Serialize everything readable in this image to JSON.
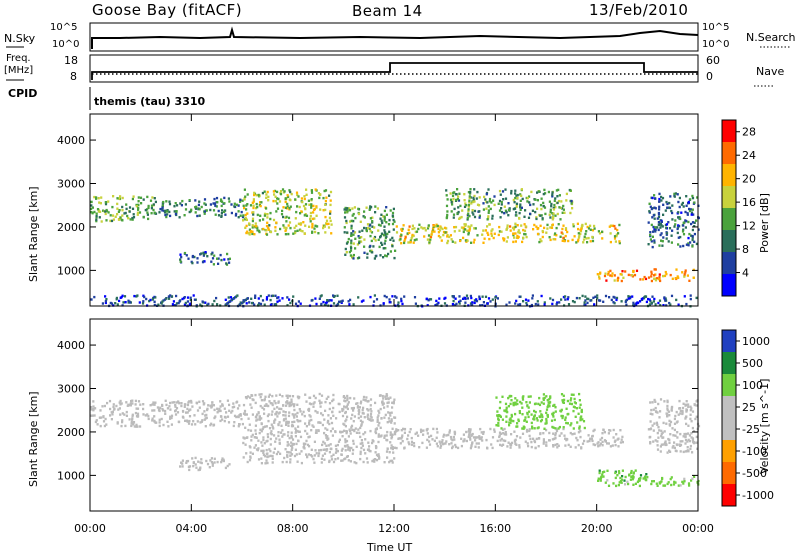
{
  "header": {
    "station": "Goose Bay (fitACF)",
    "beam": "Beam 14",
    "date": "13/Feb/2010"
  },
  "panels": {
    "nsky_label": "N.Sky",
    "nsky_ticks": [
      "10^5",
      "10^0"
    ],
    "nsearch_label": "N.Search",
    "nsearch_ticks": [
      "10^5",
      "10^0"
    ],
    "freq_label_1": "Freq.",
    "freq_label_2": "[MHz]",
    "freq_ticks": [
      "18",
      "8"
    ],
    "nave_label": "Nave",
    "nave_ticks": [
      "60",
      "0"
    ],
    "cpid_label": "CPID",
    "cpid_value": "themis (tau) 3310"
  },
  "colors": {
    "power_scale": [
      "#0000ff",
      "#1f3fa0",
      "#2a6e5a",
      "#4aa23c",
      "#c8d23c",
      "#ffb400",
      "#ff6a00",
      "#ff0000"
    ],
    "velocity_scale": [
      "#ff0000",
      "#ff6a00",
      "#ffa000",
      "#c0c0c0",
      "#c0c0c0",
      "#70d040",
      "#1a8a3a",
      "#2040c0"
    ],
    "ground_scatter": "#bbbbbb"
  },
  "chart_data": [
    {
      "type": "heatmap",
      "title": "Power",
      "xlabel": "Time UT",
      "ylabel": "Slant Range [km]",
      "x_ticks": [
        "00:00",
        "04:00",
        "08:00",
        "12:00",
        "16:00",
        "20:00",
        "00:00"
      ],
      "y_ticks": [
        "1000",
        "2000",
        "3000",
        "4000"
      ],
      "ylim": [
        180,
        4600
      ],
      "colorbar_label": "Power [dB]",
      "colorbar_ticks": [
        "4",
        "8",
        "12",
        "16",
        "20",
        "24",
        "28"
      ],
      "colorbar_range": [
        0,
        30
      ],
      "bands": [
        {
          "t0": 0.0,
          "t1": 2.5,
          "r0": 2150,
          "r1": 2750,
          "value": 14
        },
        {
          "t0": 2.5,
          "t1": 6.0,
          "r0": 2250,
          "r1": 2700,
          "value": 10
        },
        {
          "t0": 3.5,
          "t1": 5.5,
          "r0": 1150,
          "r1": 1450,
          "value": 8
        },
        {
          "t0": 6.0,
          "t1": 9.5,
          "r0": 1850,
          "r1": 2900,
          "value": 16
        },
        {
          "t0": 10.0,
          "t1": 12.0,
          "r0": 1300,
          "r1": 2500,
          "value": 12
        },
        {
          "t0": 12.0,
          "t1": 21.0,
          "r0": 1650,
          "r1": 2100,
          "value": 18
        },
        {
          "t0": 14.0,
          "t1": 19.0,
          "r0": 2200,
          "r1": 2900,
          "value": 12
        },
        {
          "t0": 20.0,
          "t1": 24.0,
          "r0": 780,
          "r1": 1050,
          "value": 22
        },
        {
          "t0": 22.0,
          "t1": 24.0,
          "r0": 1550,
          "r1": 2800,
          "value": 8
        },
        {
          "t0": 0.0,
          "t1": 24.0,
          "r0": 200,
          "r1": 450,
          "value": 6
        }
      ]
    },
    {
      "type": "heatmap",
      "title": "Velocity",
      "xlabel": "Time UT",
      "ylabel": "Slant Range [km]",
      "x_ticks": [
        "00:00",
        "04:00",
        "08:00",
        "12:00",
        "16:00",
        "20:00",
        "00:00"
      ],
      "y_ticks": [
        "1000",
        "2000",
        "3000",
        "4000"
      ],
      "ylim": [
        180,
        4600
      ],
      "colorbar_label": "Velocity [m s^-1]",
      "colorbar_ticks": [
        "1000",
        "500",
        "100",
        "25",
        "-25",
        "-100",
        "-500",
        "-1000"
      ],
      "bands": [
        {
          "t0": 0.0,
          "t1": 6.0,
          "r0": 2150,
          "r1": 2750,
          "value": 0,
          "ground_scatter": true
        },
        {
          "t0": 3.5,
          "t1": 5.5,
          "r0": 1150,
          "r1": 1450,
          "value": 0,
          "ground_scatter": true
        },
        {
          "t0": 6.0,
          "t1": 12.0,
          "r0": 1300,
          "r1": 2900,
          "value": 0,
          "ground_scatter": true
        },
        {
          "t0": 12.0,
          "t1": 21.0,
          "r0": 1650,
          "r1": 2100,
          "value": 0,
          "ground_scatter": true
        },
        {
          "t0": 16.0,
          "t1": 19.5,
          "r0": 2100,
          "r1": 2900,
          "value": 300
        },
        {
          "t0": 20.0,
          "t1": 22.0,
          "r0": 900,
          "r1": 1150,
          "value": 400
        },
        {
          "t0": 20.0,
          "t1": 24.0,
          "r0": 780,
          "r1": 1000,
          "value": 150
        },
        {
          "t0": 22.0,
          "t1": 24.0,
          "r0": 1550,
          "r1": 2800,
          "value": 0,
          "ground_scatter": true
        }
      ]
    }
  ]
}
